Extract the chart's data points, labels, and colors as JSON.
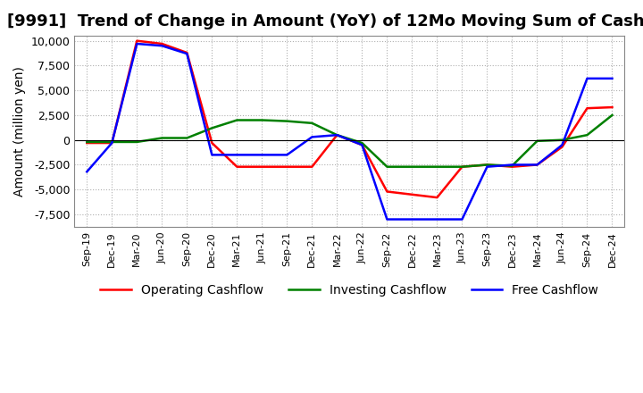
{
  "title": "[9991]  Trend of Change in Amount (YoY) of 12Mo Moving Sum of Cashflows",
  "ylabel": "Amount (million yen)",
  "ylim": [
    -8800,
    10500
  ],
  "yticks": [
    -7500,
    -5000,
    -2500,
    0,
    2500,
    5000,
    7500,
    10000
  ],
  "x_labels": [
    "Sep-19",
    "Dec-19",
    "Mar-20",
    "Jun-20",
    "Sep-20",
    "Dec-20",
    "Mar-21",
    "Jun-21",
    "Sep-21",
    "Dec-21",
    "Mar-22",
    "Jun-22",
    "Sep-22",
    "Dec-22",
    "Mar-23",
    "Jun-23",
    "Sep-23",
    "Dec-23",
    "Mar-24",
    "Jun-24",
    "Sep-24",
    "Dec-24"
  ],
  "operating": [
    -300,
    -300,
    10000,
    9700,
    8800,
    -300,
    -2700,
    -2700,
    -2700,
    -2700,
    500,
    -500,
    -5200,
    -5500,
    -5800,
    -2700,
    -2500,
    -2700,
    -2500,
    -700,
    3200,
    3300
  ],
  "investing": [
    -200,
    -200,
    -200,
    200,
    200,
    1200,
    2000,
    2000,
    1900,
    1700,
    500,
    -300,
    -2700,
    -2700,
    -2700,
    -2700,
    -2500,
    -2600,
    -100,
    0,
    500,
    2500
  ],
  "free": [
    -3200,
    -300,
    9700,
    9500,
    8700,
    -1500,
    -1500,
    -1500,
    -1500,
    300,
    500,
    -500,
    -8000,
    -8000,
    -8000,
    -8000,
    -2700,
    -2500,
    -2500,
    -500,
    6200,
    6200
  ],
  "operating_color": "#ff0000",
  "investing_color": "#008000",
  "free_color": "#0000ff",
  "background_color": "#ffffff",
  "grid_color": "#b0b0b0",
  "title_fontsize": 13,
  "axis_fontsize": 10,
  "legend_fontsize": 10
}
